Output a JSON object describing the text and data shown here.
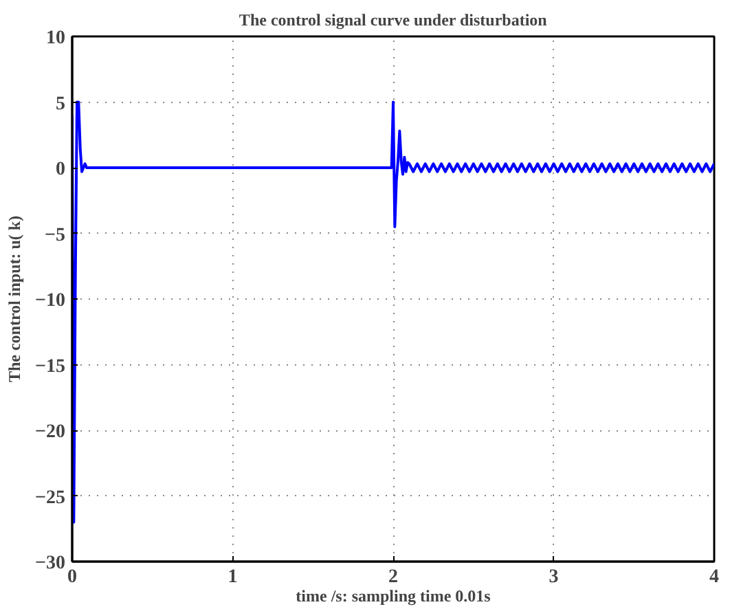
{
  "chart_data": {
    "type": "line",
    "title": "The control signal curve under disturbation",
    "xlabel": "time /s: sampling time 0.01s",
    "ylabel": "The control input: u( k)",
    "xlim": [
      0,
      4
    ],
    "ylim": [
      -30,
      10
    ],
    "xticks": [
      0,
      1,
      2,
      3,
      4
    ],
    "yticks": [
      -30,
      -25,
      -20,
      -15,
      -10,
      -5,
      0,
      5,
      10
    ],
    "grid": true,
    "line_style": "solid",
    "marker": "none",
    "series": [
      {
        "color": "#0000ff",
        "x": [
          0,
          0.01,
          0.02,
          0.03,
          0.04,
          0.05,
          0.06,
          0.07,
          0.08,
          0.09,
          1.99,
          2.0,
          2.01,
          2.02,
          2.03,
          2.04,
          2.05,
          2.06,
          2.07,
          2.08,
          2.09,
          2.1,
          2.125,
          2.15,
          2.175,
          2.2,
          2.225,
          2.25,
          2.275,
          2.3,
          2.325,
          2.35,
          2.375,
          2.4,
          2.425,
          2.45,
          2.475,
          2.5,
          2.525,
          2.55,
          2.575,
          2.6,
          2.625,
          2.65,
          2.675,
          2.7,
          2.725,
          2.75,
          2.775,
          2.8,
          2.825,
          2.85,
          2.875,
          2.9,
          2.925,
          2.95,
          2.975,
          3.0,
          3.025,
          3.05,
          3.075,
          3.1,
          3.125,
          3.15,
          3.175,
          3.2,
          3.225,
          3.25,
          3.275,
          3.3,
          3.325,
          3.35,
          3.375,
          3.4,
          3.425,
          3.45,
          3.475,
          3.5,
          3.525,
          3.55,
          3.575,
          3.6,
          3.625,
          3.65,
          3.675,
          3.7,
          3.725,
          3.75,
          3.775,
          3.8,
          3.825,
          3.85,
          3.875,
          3.9,
          3.925,
          3.95,
          3.975,
          4.0
        ],
        "values": [
          4,
          -27,
          -8.5,
          5,
          5,
          1.5,
          -0.3,
          0,
          0.3,
          0,
          0,
          5,
          -4.5,
          -1,
          0.5,
          2.8,
          0.5,
          -0.5,
          0.8,
          -0.3,
          0.4,
          0.3,
          -0.3,
          0.3,
          -0.3,
          0.3,
          -0.3,
          0.3,
          -0.3,
          0.3,
          -0.3,
          0.3,
          -0.3,
          0.3,
          -0.3,
          0.3,
          -0.3,
          0.3,
          -0.3,
          0.3,
          -0.3,
          0.3,
          -0.3,
          0.3,
          -0.3,
          0.3,
          -0.3,
          0.3,
          -0.3,
          0.3,
          -0.3,
          0.3,
          -0.3,
          0.3,
          -0.3,
          0.3,
          -0.3,
          0.3,
          -0.3,
          0.3,
          -0.3,
          0.3,
          -0.3,
          0.3,
          -0.3,
          0.3,
          -0.3,
          0.3,
          -0.3,
          0.3,
          -0.3,
          0.3,
          -0.3,
          0.3,
          -0.3,
          0.3,
          -0.3,
          0.3,
          -0.3,
          0.3,
          -0.3,
          0.3,
          -0.3,
          0.3,
          -0.3,
          0.3,
          -0.3,
          0.3,
          -0.3,
          0.3,
          -0.3,
          0.3,
          -0.3,
          0.3,
          -0.3,
          0.3,
          -0.3,
          0.3
        ]
      }
    ]
  }
}
